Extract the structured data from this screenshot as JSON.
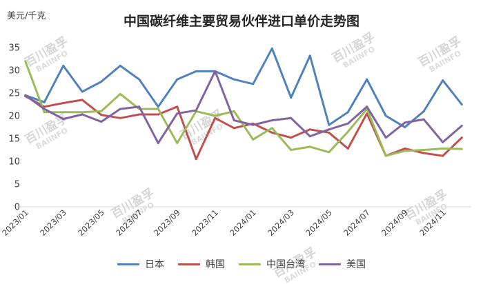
{
  "watermark": {
    "cn": "百川盈孚",
    "en": "BAIINFO"
  },
  "chart_data": {
    "type": "line",
    "title": "中国碳纤维主要贸易伙伴进口单价走势图",
    "ylabel": "美元/千克",
    "xlabel": "",
    "ylim": [
      0,
      35
    ],
    "yticks": [
      0,
      5,
      10,
      15,
      20,
      25,
      30,
      35
    ],
    "grid": false,
    "legend": "bottom",
    "x": [
      "2023/01",
      "2023/02",
      "2023/03",
      "2023/04",
      "2023/05",
      "2023/06",
      "2023/07",
      "2023/08",
      "2023/09",
      "2023/10",
      "2023/11",
      "2023/12",
      "2024/01",
      "2024/02",
      "2024/03",
      "2024/04",
      "2024/05",
      "2024/06",
      "2024/07",
      "2024/08",
      "2024/09",
      "2024/10",
      "2024/11",
      "2024/12"
    ],
    "x_tick_labels": [
      "2023/01",
      "2023/03",
      "2023/05",
      "2023/07",
      "2023/09",
      "2023/11",
      "2024/01",
      "2024/03",
      "2024/05",
      "2024/07",
      "2024/09",
      "2024/11"
    ],
    "series": [
      {
        "name": "日本",
        "color": "#4F81BD",
        "values": [
          24.5,
          23,
          31,
          25.3,
          27.5,
          31,
          28,
          22,
          28,
          29.8,
          29.8,
          28,
          27,
          34.8,
          24,
          33.2,
          18,
          20.8,
          28,
          20,
          17.5,
          21,
          27.8,
          22.5
        ]
      },
      {
        "name": "韩国",
        "color": "#C0504D",
        "values": [
          24.3,
          22,
          22.8,
          23.5,
          20.2,
          19.5,
          20.3,
          20.3,
          22,
          10.5,
          19.5,
          17.3,
          18.3,
          16.3,
          15.2,
          17,
          16.3,
          12.8,
          20.5,
          11.2,
          12.8,
          11.8,
          11.2,
          15.2
        ]
      },
      {
        "name": "中国台湾",
        "color": "#9BBB59",
        "values": [
          32,
          20.8,
          20.8,
          20.8,
          21,
          24.8,
          21.5,
          21.5,
          14,
          21,
          20,
          21,
          14.8,
          17.3,
          12.5,
          13.2,
          12,
          16.5,
          21.5,
          11.2,
          12.3,
          12.5,
          12.8,
          12.7
        ]
      },
      {
        "name": "美国",
        "color": "#8064A2",
        "values": [
          24.5,
          21.5,
          19.3,
          20.3,
          18.7,
          21.5,
          22,
          14,
          20.5,
          21.2,
          29.8,
          19,
          18,
          19,
          19.5,
          15.5,
          17,
          18.3,
          22,
          15.2,
          18.5,
          19.2,
          14.2,
          17.8
        ]
      }
    ]
  }
}
